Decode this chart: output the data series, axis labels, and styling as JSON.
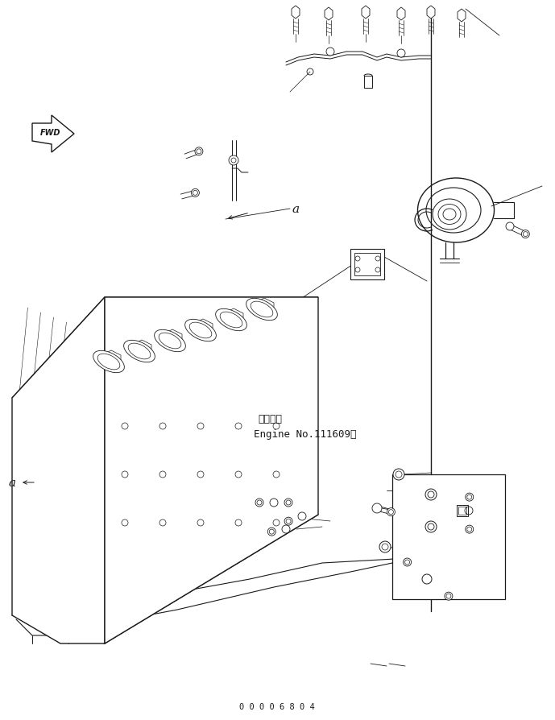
{
  "background_color": "#ffffff",
  "line_color": "#1a1a1a",
  "text_color": "#1a1a1a",
  "fwd_label": "FWD",
  "annotation_a": "a",
  "engine_label_jp": "適用号機",
  "engine_label_en": "Engine No.111609〜",
  "footer_text": "0 0 0 0 6 8 0 4",
  "fig_width": 6.89,
  "fig_height": 8.95,
  "dpi": 100
}
